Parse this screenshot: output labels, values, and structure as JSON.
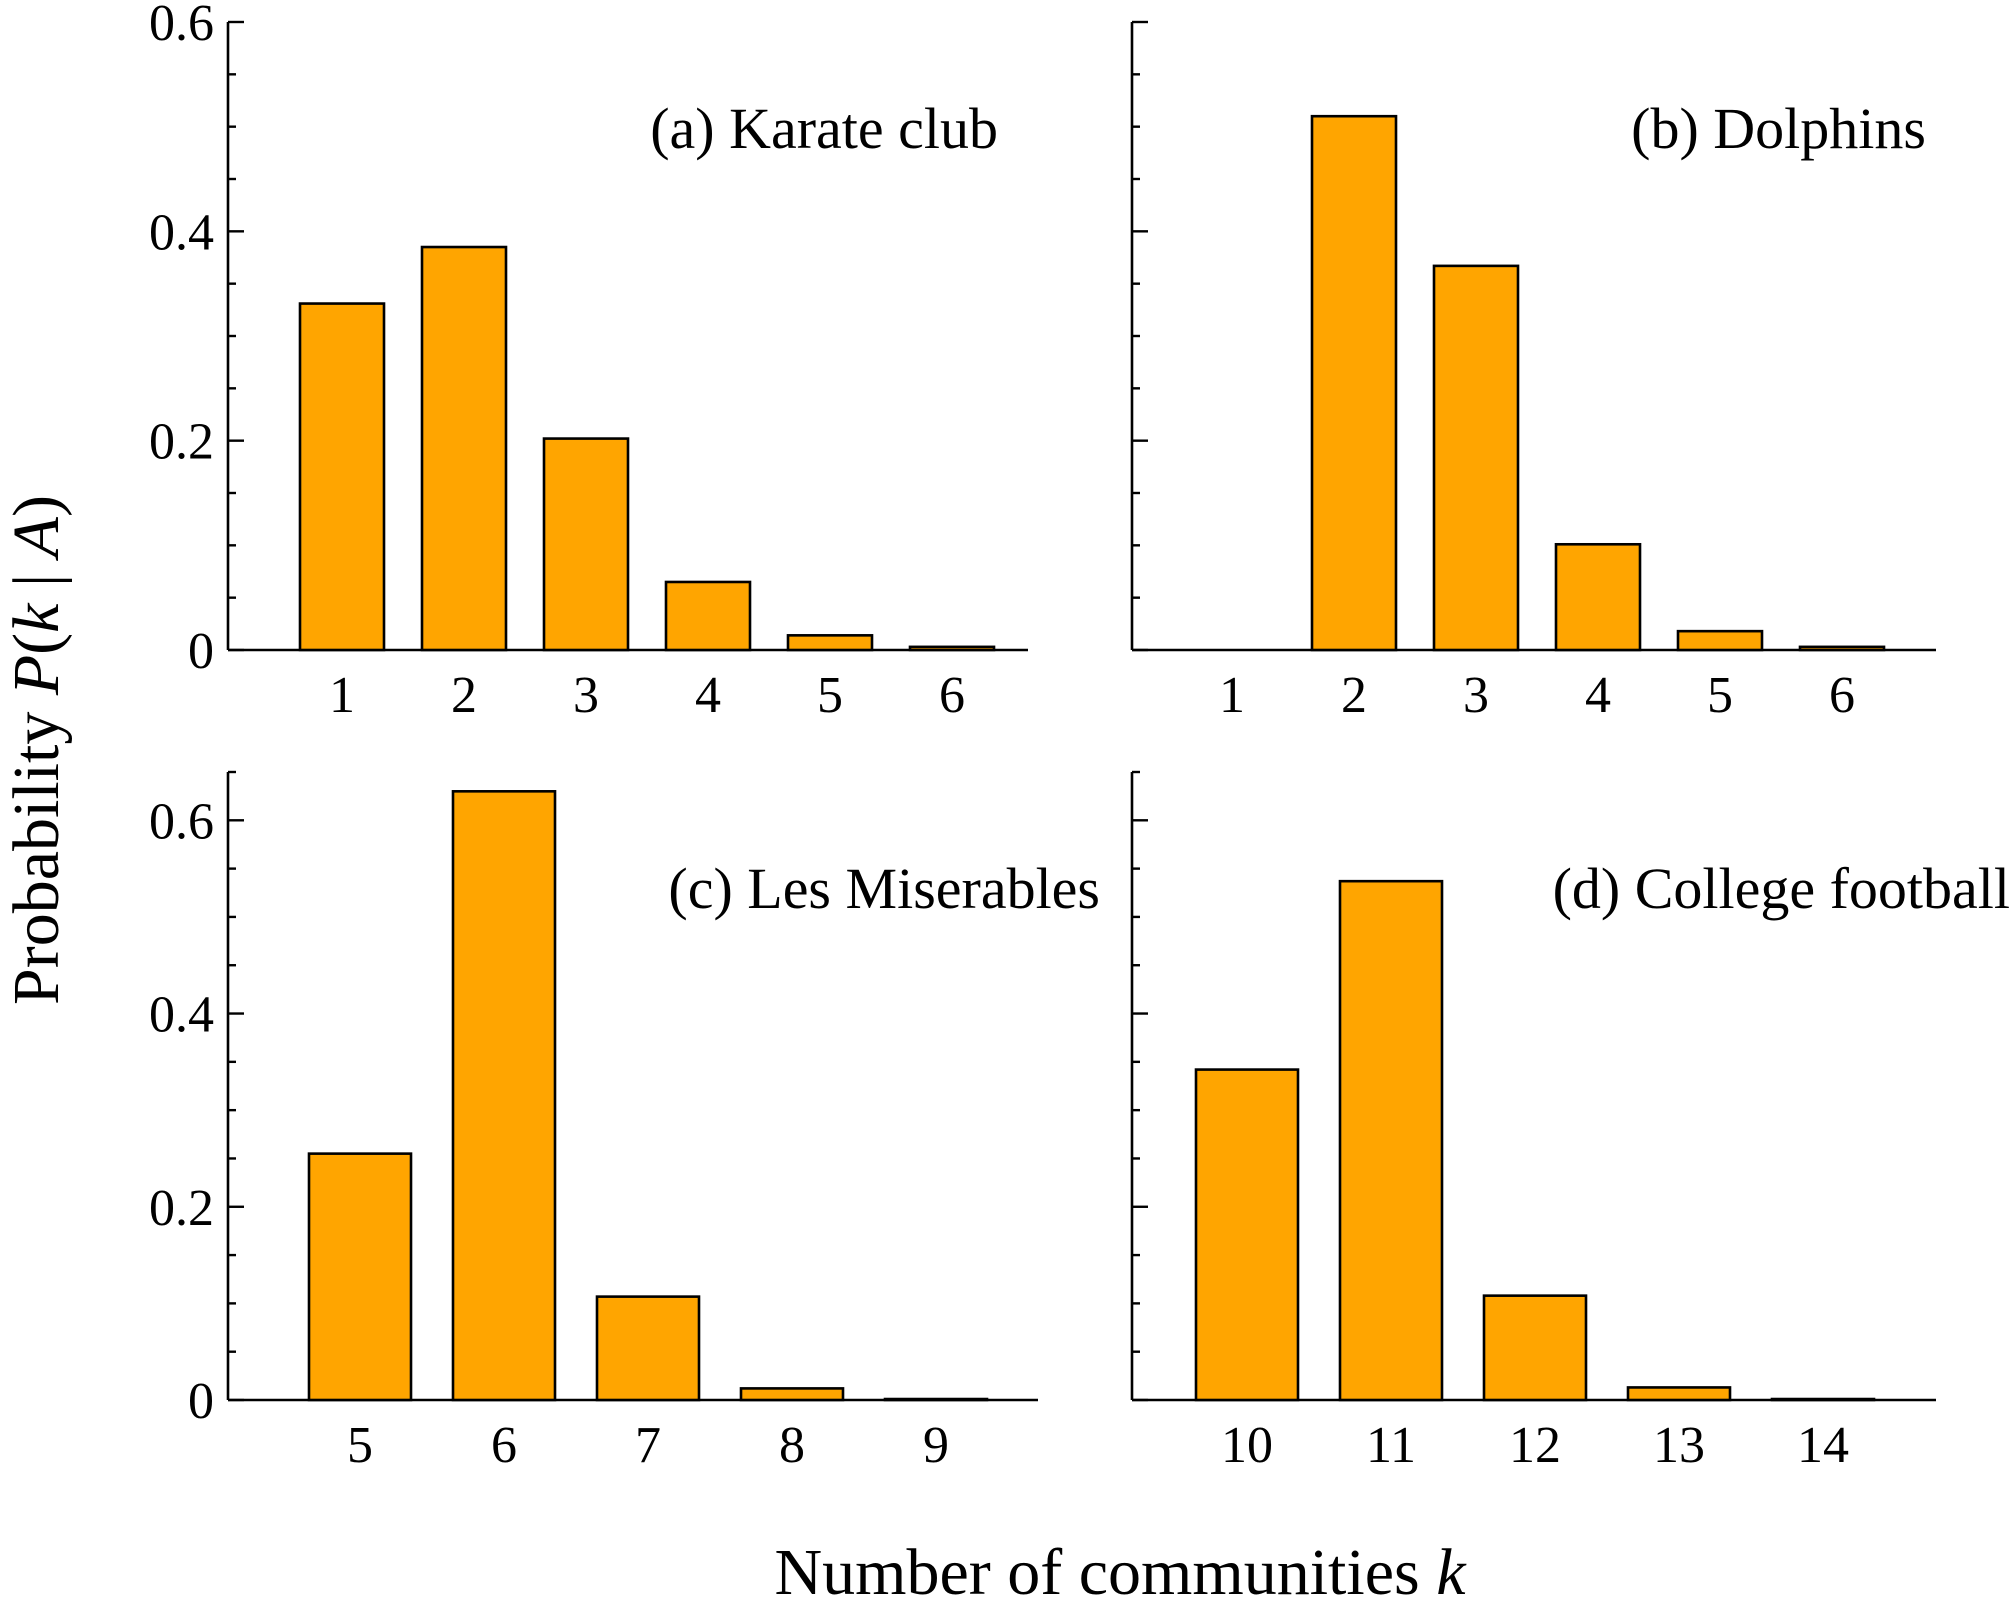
{
  "figure": {
    "ylabel_prefix": "Probability",
    "ylabel_func": "P",
    "ylabel_open": "(",
    "ylabel_var": "k",
    "ylabel_mid": " | ",
    "ylabel_cond": "A",
    "ylabel_close": ")",
    "xlabel_text": "Number of communities",
    "xlabel_var": "k",
    "bar_color": "#FFA500"
  },
  "chart_data": [
    {
      "type": "bar",
      "title": "(a) Karate club",
      "categories": [
        "1",
        "2",
        "3",
        "4",
        "5",
        "6"
      ],
      "values": [
        0.331,
        0.385,
        0.202,
        0.065,
        0.014,
        0.003
      ],
      "ylim": [
        0,
        0.6
      ],
      "yticks": [
        0,
        0.2,
        0.4,
        0.6
      ],
      "ytick_labels": [
        "0",
        "0.2",
        "0.4",
        "0.6"
      ],
      "minor_step": 0.05,
      "xlabel": "",
      "ylabel": ""
    },
    {
      "type": "bar",
      "title": "(b) Dolphins",
      "categories": [
        "1",
        "2",
        "3",
        "4",
        "5",
        "6"
      ],
      "values": [
        0.0,
        0.51,
        0.367,
        0.101,
        0.018,
        0.003
      ],
      "ylim": [
        0,
        0.6
      ],
      "yticks": [
        0,
        0.2,
        0.4,
        0.6
      ],
      "ytick_labels": [],
      "minor_step": 0.05,
      "xlabel": "",
      "ylabel": ""
    },
    {
      "type": "bar",
      "title": "(c) Les Miserables",
      "categories": [
        "5",
        "6",
        "7",
        "8",
        "9"
      ],
      "values": [
        0.255,
        0.63,
        0.107,
        0.012,
        0.001
      ],
      "ylim": [
        0,
        0.65
      ],
      "yticks": [
        0,
        0.2,
        0.4,
        0.6
      ],
      "ytick_labels": [
        "0",
        "0.2",
        "0.4",
        "0.6"
      ],
      "minor_step": 0.05,
      "xlabel": "",
      "ylabel": ""
    },
    {
      "type": "bar",
      "title": "(d) College football",
      "categories": [
        "10",
        "11",
        "12",
        "13",
        "14"
      ],
      "values": [
        0.342,
        0.537,
        0.108,
        0.013,
        0.001
      ],
      "ylim": [
        0,
        0.65
      ],
      "yticks": [
        0,
        0.2,
        0.4,
        0.6
      ],
      "ytick_labels": [],
      "minor_step": 0.05,
      "xlabel": "",
      "ylabel": ""
    }
  ]
}
